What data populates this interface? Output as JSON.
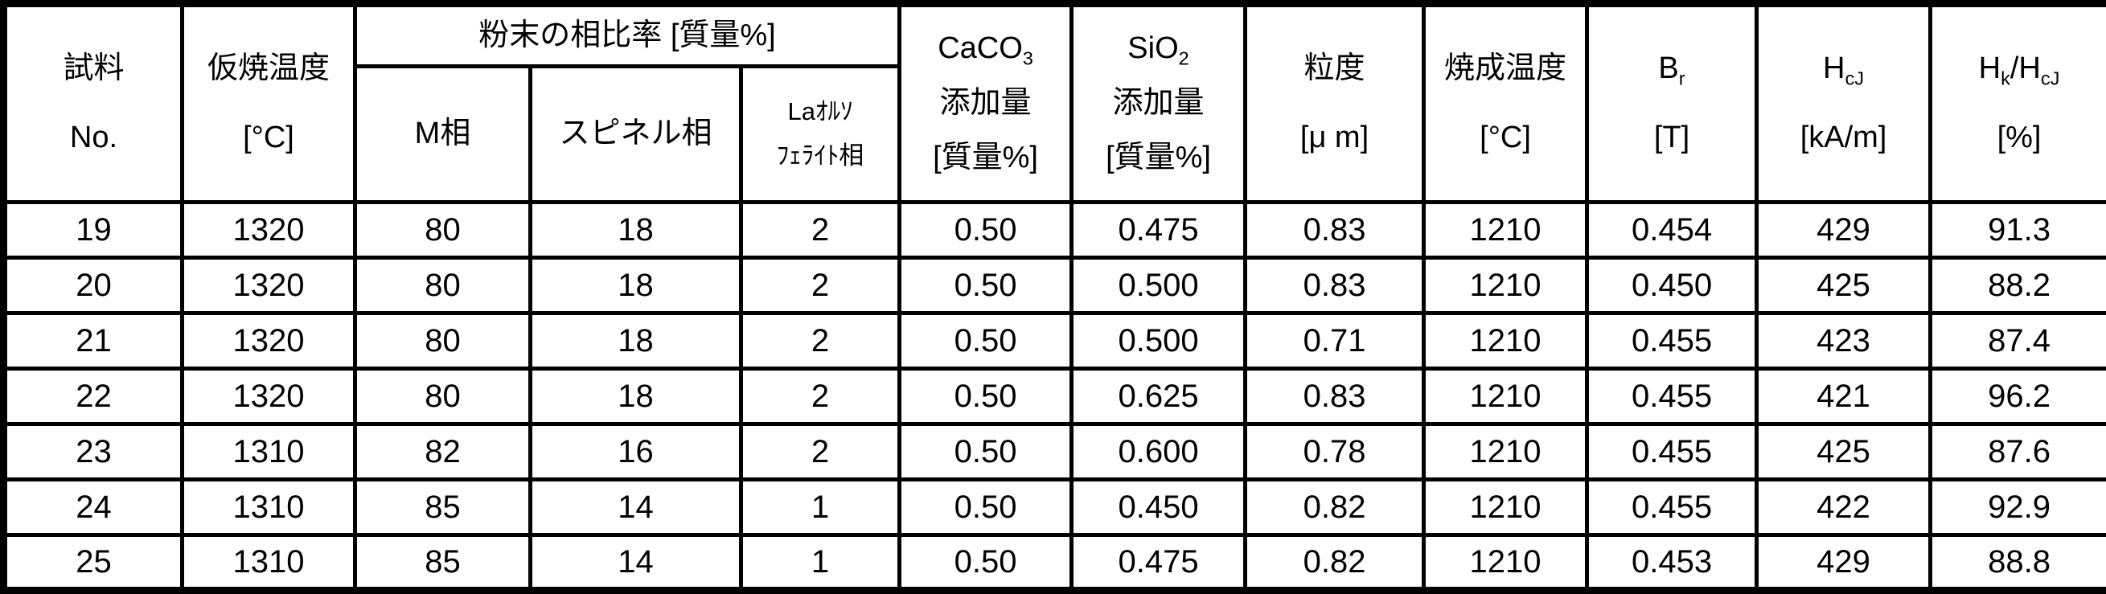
{
  "page": {
    "background_color": "#ffffff",
    "line_color": "#000000"
  },
  "table": {
    "header": {
      "sample_no": {
        "line1": "試料",
        "line2": "No."
      },
      "calcination_temp": {
        "line1": "仮焼温度",
        "line2": "[°C]"
      },
      "phase_ratio_group": "粉末の相比率 [質量%]",
      "m_phase": "M相",
      "spinel_phase": "スピネル相",
      "la_ortho_ferrite": {
        "line1": "Laｵﾙｿ",
        "line2": "ﾌｪﾗｲﾄ相"
      },
      "caco3": {
        "formula_base": "CaCO",
        "formula_sub": "3",
        "line2": "添加量",
        "line3": "[質量%]"
      },
      "sio2": {
        "formula_base": "SiO",
        "formula_sub": "2",
        "line2": "添加量",
        "line3": "[質量%]"
      },
      "particle_size": {
        "line1": "粒度",
        "line2": "[μ m]"
      },
      "firing_temp": {
        "line1": "焼成温度",
        "line2": "[°C]"
      },
      "br": {
        "base": "B",
        "sub": "r",
        "unit": "[T]"
      },
      "hcj": {
        "base": "H",
        "sub": "cJ",
        "unit": "[kA/m]"
      },
      "hk_hcj": {
        "base1": "H",
        "sub1": "k",
        "separator": "/",
        "base2": "H",
        "sub2": "cJ",
        "unit": "[%]"
      }
    },
    "rows": [
      {
        "sample_no": "19",
        "calcination_temp": "1320",
        "m_phase": "80",
        "spinel_phase": "18",
        "la_phase": "2",
        "caco3": "0.50",
        "sio2": "0.475",
        "particle_size": "0.83",
        "firing_temp": "1210",
        "br": "0.454",
        "hcj": "429",
        "hk_hcj": "91.3"
      },
      {
        "sample_no": "20",
        "calcination_temp": "1320",
        "m_phase": "80",
        "spinel_phase": "18",
        "la_phase": "2",
        "caco3": "0.50",
        "sio2": "0.500",
        "particle_size": "0.83",
        "firing_temp": "1210",
        "br": "0.450",
        "hcj": "425",
        "hk_hcj": "88.2"
      },
      {
        "sample_no": "21",
        "calcination_temp": "1320",
        "m_phase": "80",
        "spinel_phase": "18",
        "la_phase": "2",
        "caco3": "0.50",
        "sio2": "0.500",
        "particle_size": "0.71",
        "firing_temp": "1210",
        "br": "0.455",
        "hcj": "423",
        "hk_hcj": "87.4"
      },
      {
        "sample_no": "22",
        "calcination_temp": "1320",
        "m_phase": "80",
        "spinel_phase": "18",
        "la_phase": "2",
        "caco3": "0.50",
        "sio2": "0.625",
        "particle_size": "0.83",
        "firing_temp": "1210",
        "br": "0.455",
        "hcj": "421",
        "hk_hcj": "96.2"
      },
      {
        "sample_no": "23",
        "calcination_temp": "1310",
        "m_phase": "82",
        "spinel_phase": "16",
        "la_phase": "2",
        "caco3": "0.50",
        "sio2": "0.600",
        "particle_size": "0.78",
        "firing_temp": "1210",
        "br": "0.455",
        "hcj": "425",
        "hk_hcj": "87.6"
      },
      {
        "sample_no": "24",
        "calcination_temp": "1310",
        "m_phase": "85",
        "spinel_phase": "14",
        "la_phase": "1",
        "caco3": "0.50",
        "sio2": "0.450",
        "particle_size": "0.82",
        "firing_temp": "1210",
        "br": "0.455",
        "hcj": "422",
        "hk_hcj": "92.9"
      },
      {
        "sample_no": "25",
        "calcination_temp": "1310",
        "m_phase": "85",
        "spinel_phase": "14",
        "la_phase": "1",
        "caco3": "0.50",
        "sio2": "0.475",
        "particle_size": "0.82",
        "firing_temp": "1210",
        "br": "0.453",
        "hcj": "429",
        "hk_hcj": "88.8"
      }
    ]
  }
}
